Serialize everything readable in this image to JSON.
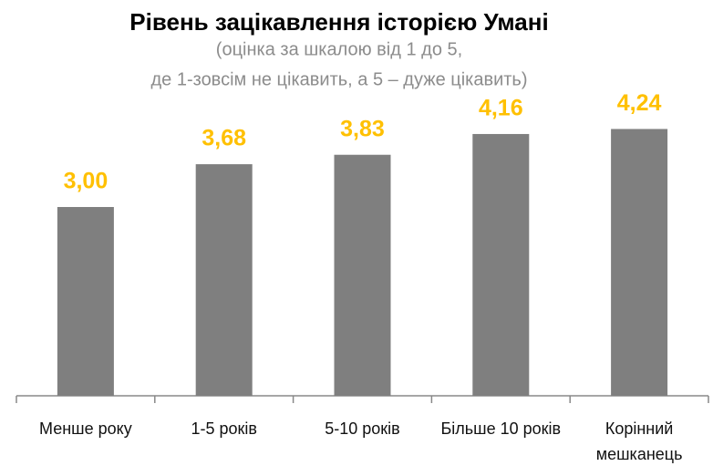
{
  "chart_data": {
    "type": "bar",
    "title": "Рівень зацікавлення історією Умані",
    "subtitle": [
      "(оцінка за шкалою від 1 до 5,",
      "де 1-зовсім не цікавить, а 5 – дуже цікавить)"
    ],
    "categories": [
      "Менше року",
      "1-5 років",
      "5-10 років",
      "Більше 10 років",
      "Корінний мешканець"
    ],
    "values": [
      3.0,
      3.68,
      3.83,
      4.16,
      4.24
    ],
    "value_labels": [
      "3,00",
      "3,68",
      "3,83",
      "4,16",
      "4,24"
    ],
    "color": "#7f7f7f",
    "label_color": "#ffc000"
  }
}
